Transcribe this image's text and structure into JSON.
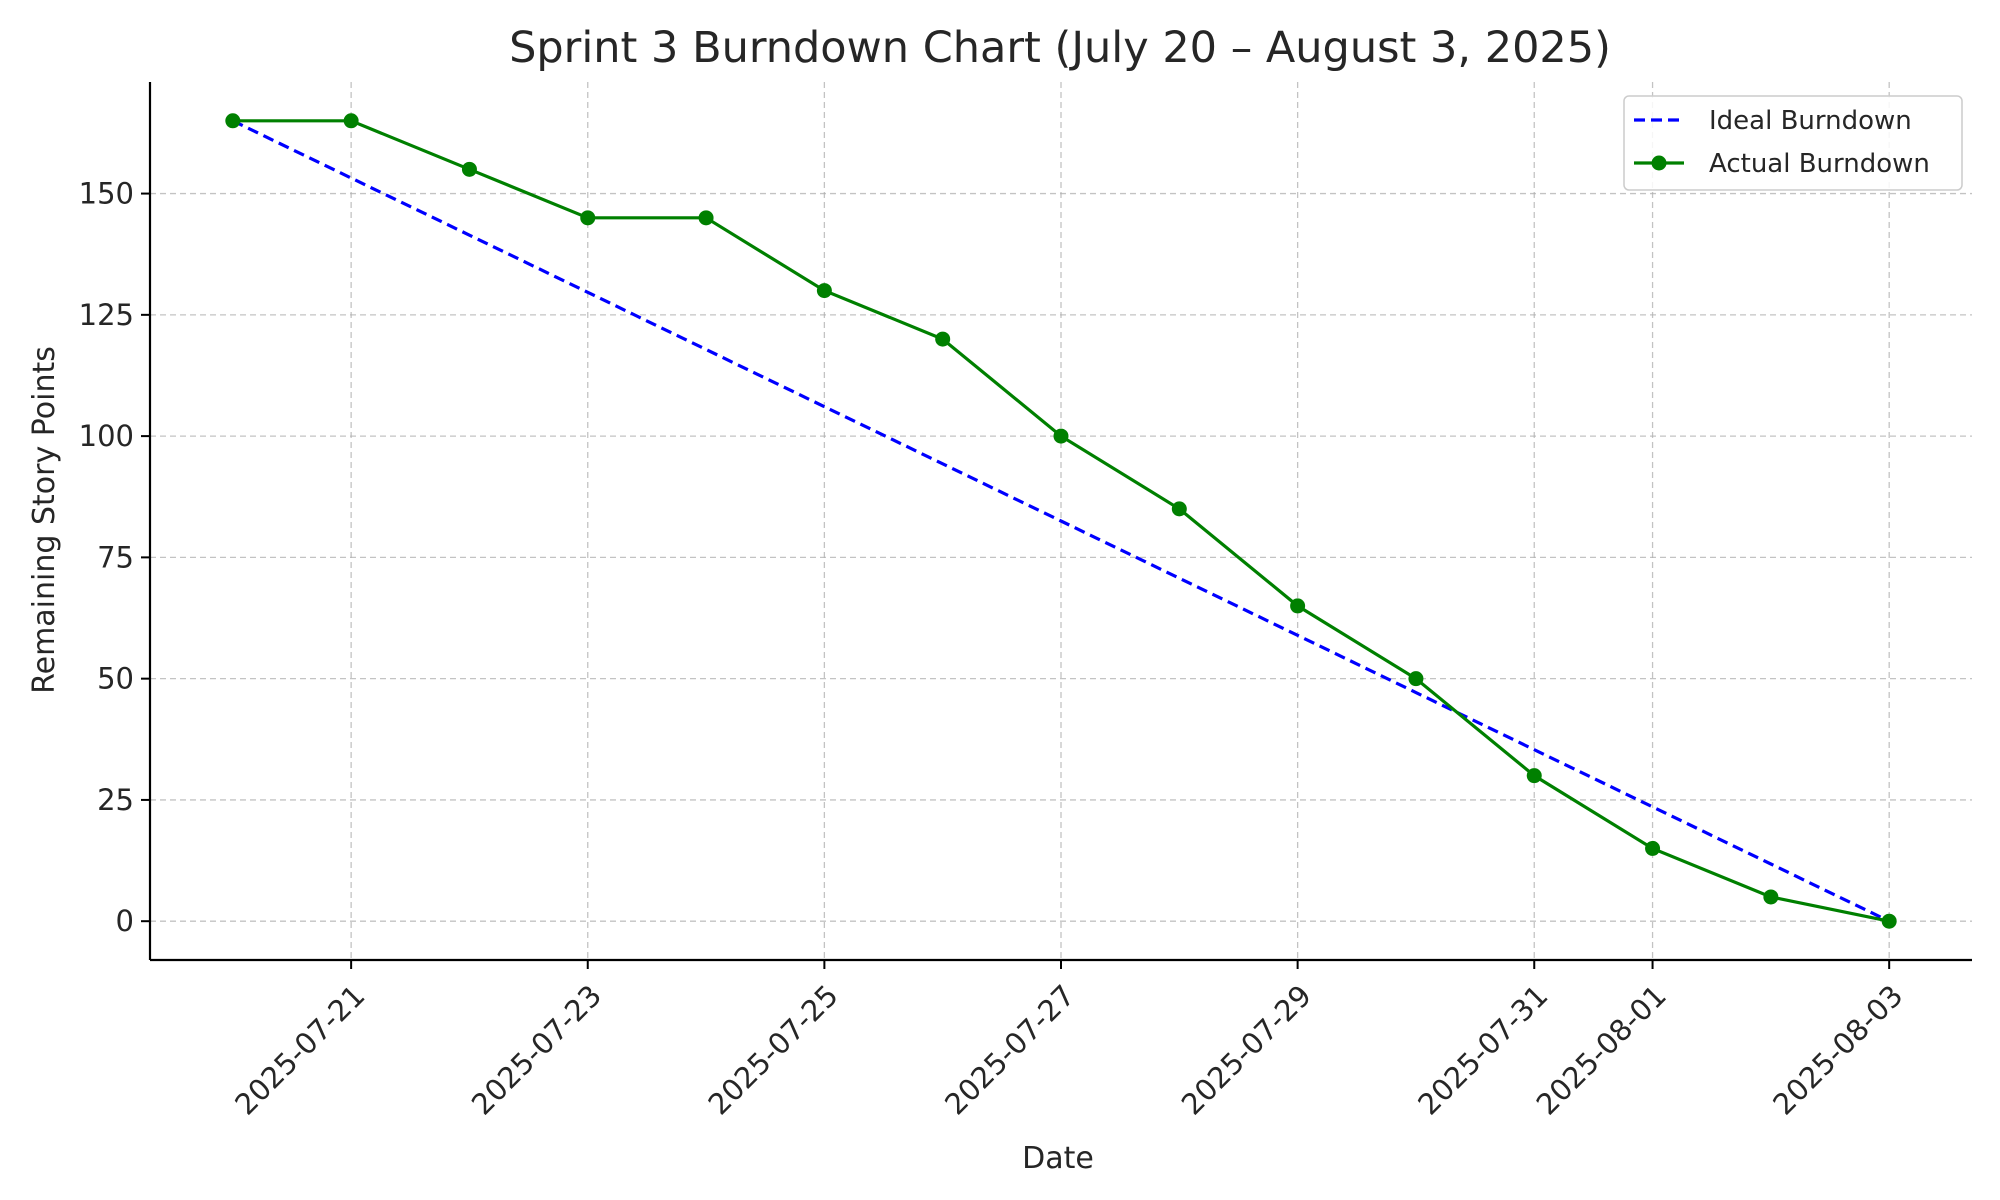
{
  "chart_data": {
    "type": "line",
    "title": "Sprint 3 Burndown Chart (July 20 – August 3, 2025)",
    "xlabel": "Date",
    "ylabel": "Remaining Story Points",
    "x": [
      "2025-07-20",
      "2025-07-21",
      "2025-07-22",
      "2025-07-23",
      "2025-07-24",
      "2025-07-25",
      "2025-07-26",
      "2025-07-27",
      "2025-07-28",
      "2025-07-29",
      "2025-07-30",
      "2025-07-31",
      "2025-08-01",
      "2025-08-02",
      "2025-08-03"
    ],
    "x_ticks": [
      "2025-07-21",
      "2025-07-23",
      "2025-07-25",
      "2025-07-27",
      "2025-07-29",
      "2025-07-31",
      "2025-08-01",
      "2025-08-03"
    ],
    "y_ticks": [
      0,
      25,
      50,
      75,
      100,
      125,
      150
    ],
    "ylim": [
      -8,
      173
    ],
    "xlim": [
      "2025-07-19T07:12",
      "2025-08-03T16:48"
    ],
    "grid": true,
    "legend_position": "top-right",
    "series": [
      {
        "name": "Ideal Burndown",
        "style": "dashed",
        "color": "#0000ff",
        "marker": "none",
        "values": [
          165,
          153.21,
          141.43,
          129.64,
          117.86,
          106.07,
          94.29,
          82.5,
          70.71,
          58.93,
          47.14,
          35.36,
          23.57,
          11.79,
          0
        ]
      },
      {
        "name": "Actual Burndown",
        "style": "solid",
        "color": "#008000",
        "marker": "circle",
        "values": [
          165,
          165,
          155,
          145,
          145,
          130,
          120,
          100,
          85,
          65,
          50,
          30,
          15,
          5,
          0
        ]
      }
    ]
  }
}
